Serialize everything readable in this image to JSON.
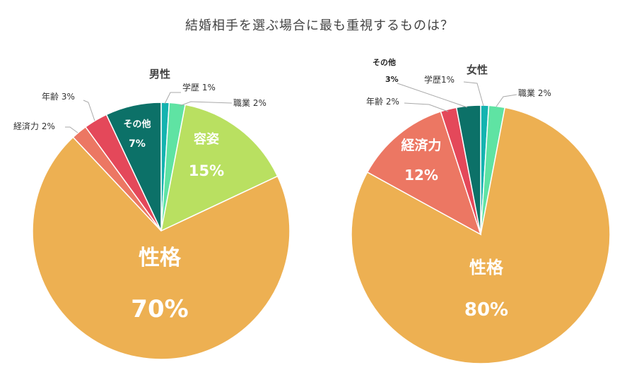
{
  "title": "結婚相手を選ぶ場合に最も重視するものは？",
  "colors": {
    "性格": "#EDB052",
    "容姿": "#B9E061",
    "職業": "#5FE3A3",
    "学歴": "#14B3B0",
    "その他": "#0C7168",
    "年齢": "#E4485A",
    "経済力": "#EC7763"
  },
  "chart_data": [
    {
      "type": "pie",
      "title": "男性",
      "slices": [
        {
          "label": "学歴",
          "value": 1,
          "color_key": "学歴",
          "text": "学歴 1%",
          "inside": false
        },
        {
          "label": "職業",
          "value": 2,
          "color_key": "職業",
          "text": "職業 2%",
          "inside": false
        },
        {
          "label": "容姿",
          "value": 15,
          "color_key": "容姿",
          "text_name": "容姿",
          "text_value": "15%",
          "inside": true
        },
        {
          "label": "性格",
          "value": 70,
          "color_key": "性格",
          "text_name": "性格",
          "text_value": "70%",
          "inside": true
        },
        {
          "label": "経済力",
          "value": 2,
          "color_key": "経済力",
          "text": "経済力 2%",
          "inside": false
        },
        {
          "label": "年齢",
          "value": 3,
          "color_key": "年齢",
          "text": "年齢 3%",
          "inside": false
        },
        {
          "label": "その他",
          "value": 7,
          "color_key": "その他",
          "text_name": "その他",
          "text_value": "7%",
          "inside": true
        }
      ]
    },
    {
      "type": "pie",
      "title": "女性",
      "slices": [
        {
          "label": "学歴",
          "value": 1,
          "color_key": "学歴",
          "text": "学歴1%",
          "inside": false
        },
        {
          "label": "職業",
          "value": 2,
          "color_key": "職業",
          "text": "職業 2%",
          "inside": false
        },
        {
          "label": "性格",
          "value": 80,
          "color_key": "性格",
          "text_name": "性格",
          "text_value": "80%",
          "inside": true
        },
        {
          "label": "経済力",
          "value": 12,
          "color_key": "経済力",
          "text_name": "経済力",
          "text_value": "12%",
          "inside": true
        },
        {
          "label": "年齢",
          "value": 2,
          "color_key": "年齢",
          "text": "年齢 2%",
          "inside": false
        },
        {
          "label": "その他",
          "value": 3,
          "color_key": "その他",
          "text_name": "その他",
          "text_value": "3%",
          "inside": false
        }
      ]
    }
  ]
}
